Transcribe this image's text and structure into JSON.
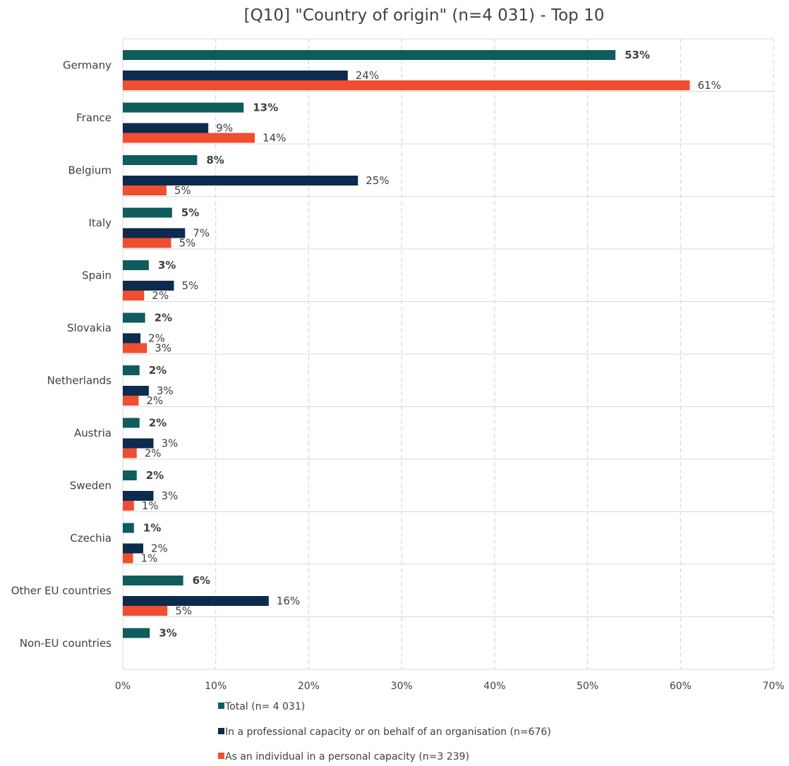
{
  "chart_data": {
    "type": "bar",
    "orientation": "horizontal",
    "title": "[Q10] \"Country of origin\" (n=4 031) - Top 10",
    "categories": [
      "Germany",
      "France",
      "Belgium",
      "Italy",
      "Spain",
      "Slovakia",
      "Netherlands",
      "Austria",
      "Sweden",
      "Czechia",
      "Other EU countries",
      "Non-EU countries"
    ],
    "series": [
      {
        "name": "Total (n= 4 031)",
        "color": "#0f5c5c",
        "values": [
          53,
          13,
          8,
          5,
          3,
          2,
          2,
          2,
          2,
          1,
          6,
          3
        ],
        "plot_values": [
          53,
          13,
          8,
          5.3,
          2.8,
          2.4,
          1.8,
          1.8,
          1.5,
          1.2,
          6.5,
          2.9
        ],
        "labels": [
          "53%",
          "13%",
          "8%",
          "5%",
          "3%",
          "2%",
          "2%",
          "2%",
          "2%",
          "1%",
          "6%",
          "3%"
        ]
      },
      {
        "name": "In a professional capacity or on behalf of an organisation (n=676)",
        "color": "#0d2b4e",
        "values": [
          24,
          9,
          25,
          7,
          5,
          2,
          3,
          3,
          3,
          2,
          16,
          null
        ],
        "plot_values": [
          24.2,
          9.2,
          25.3,
          6.7,
          5.5,
          1.9,
          2.8,
          3.3,
          3.3,
          2.2,
          15.7,
          null
        ],
        "labels": [
          "24%",
          "9%",
          "25%",
          "7%",
          "5%",
          "2%",
          "3%",
          "3%",
          "3%",
          "2%",
          "16%",
          ""
        ]
      },
      {
        "name": "As an individual in a personal capacity (n=3 239)",
        "color": "#f04e30",
        "values": [
          61,
          14,
          5,
          5,
          2,
          3,
          2,
          2,
          1,
          1,
          5,
          null
        ],
        "plot_values": [
          61,
          14.2,
          4.7,
          5.2,
          2.3,
          2.6,
          1.7,
          1.5,
          1.2,
          1.1,
          4.8,
          null
        ],
        "labels": [
          "61%",
          "14%",
          "5%",
          "5%",
          "2%",
          "3%",
          "2%",
          "2%",
          "1%",
          "1%",
          "5%",
          ""
        ]
      }
    ],
    "xlim": [
      0,
      70
    ],
    "xticks": [
      "0%",
      "10%",
      "20%",
      "30%",
      "40%",
      "50%",
      "60%",
      "70%"
    ],
    "grid": true,
    "legend_position": "bottom"
  }
}
